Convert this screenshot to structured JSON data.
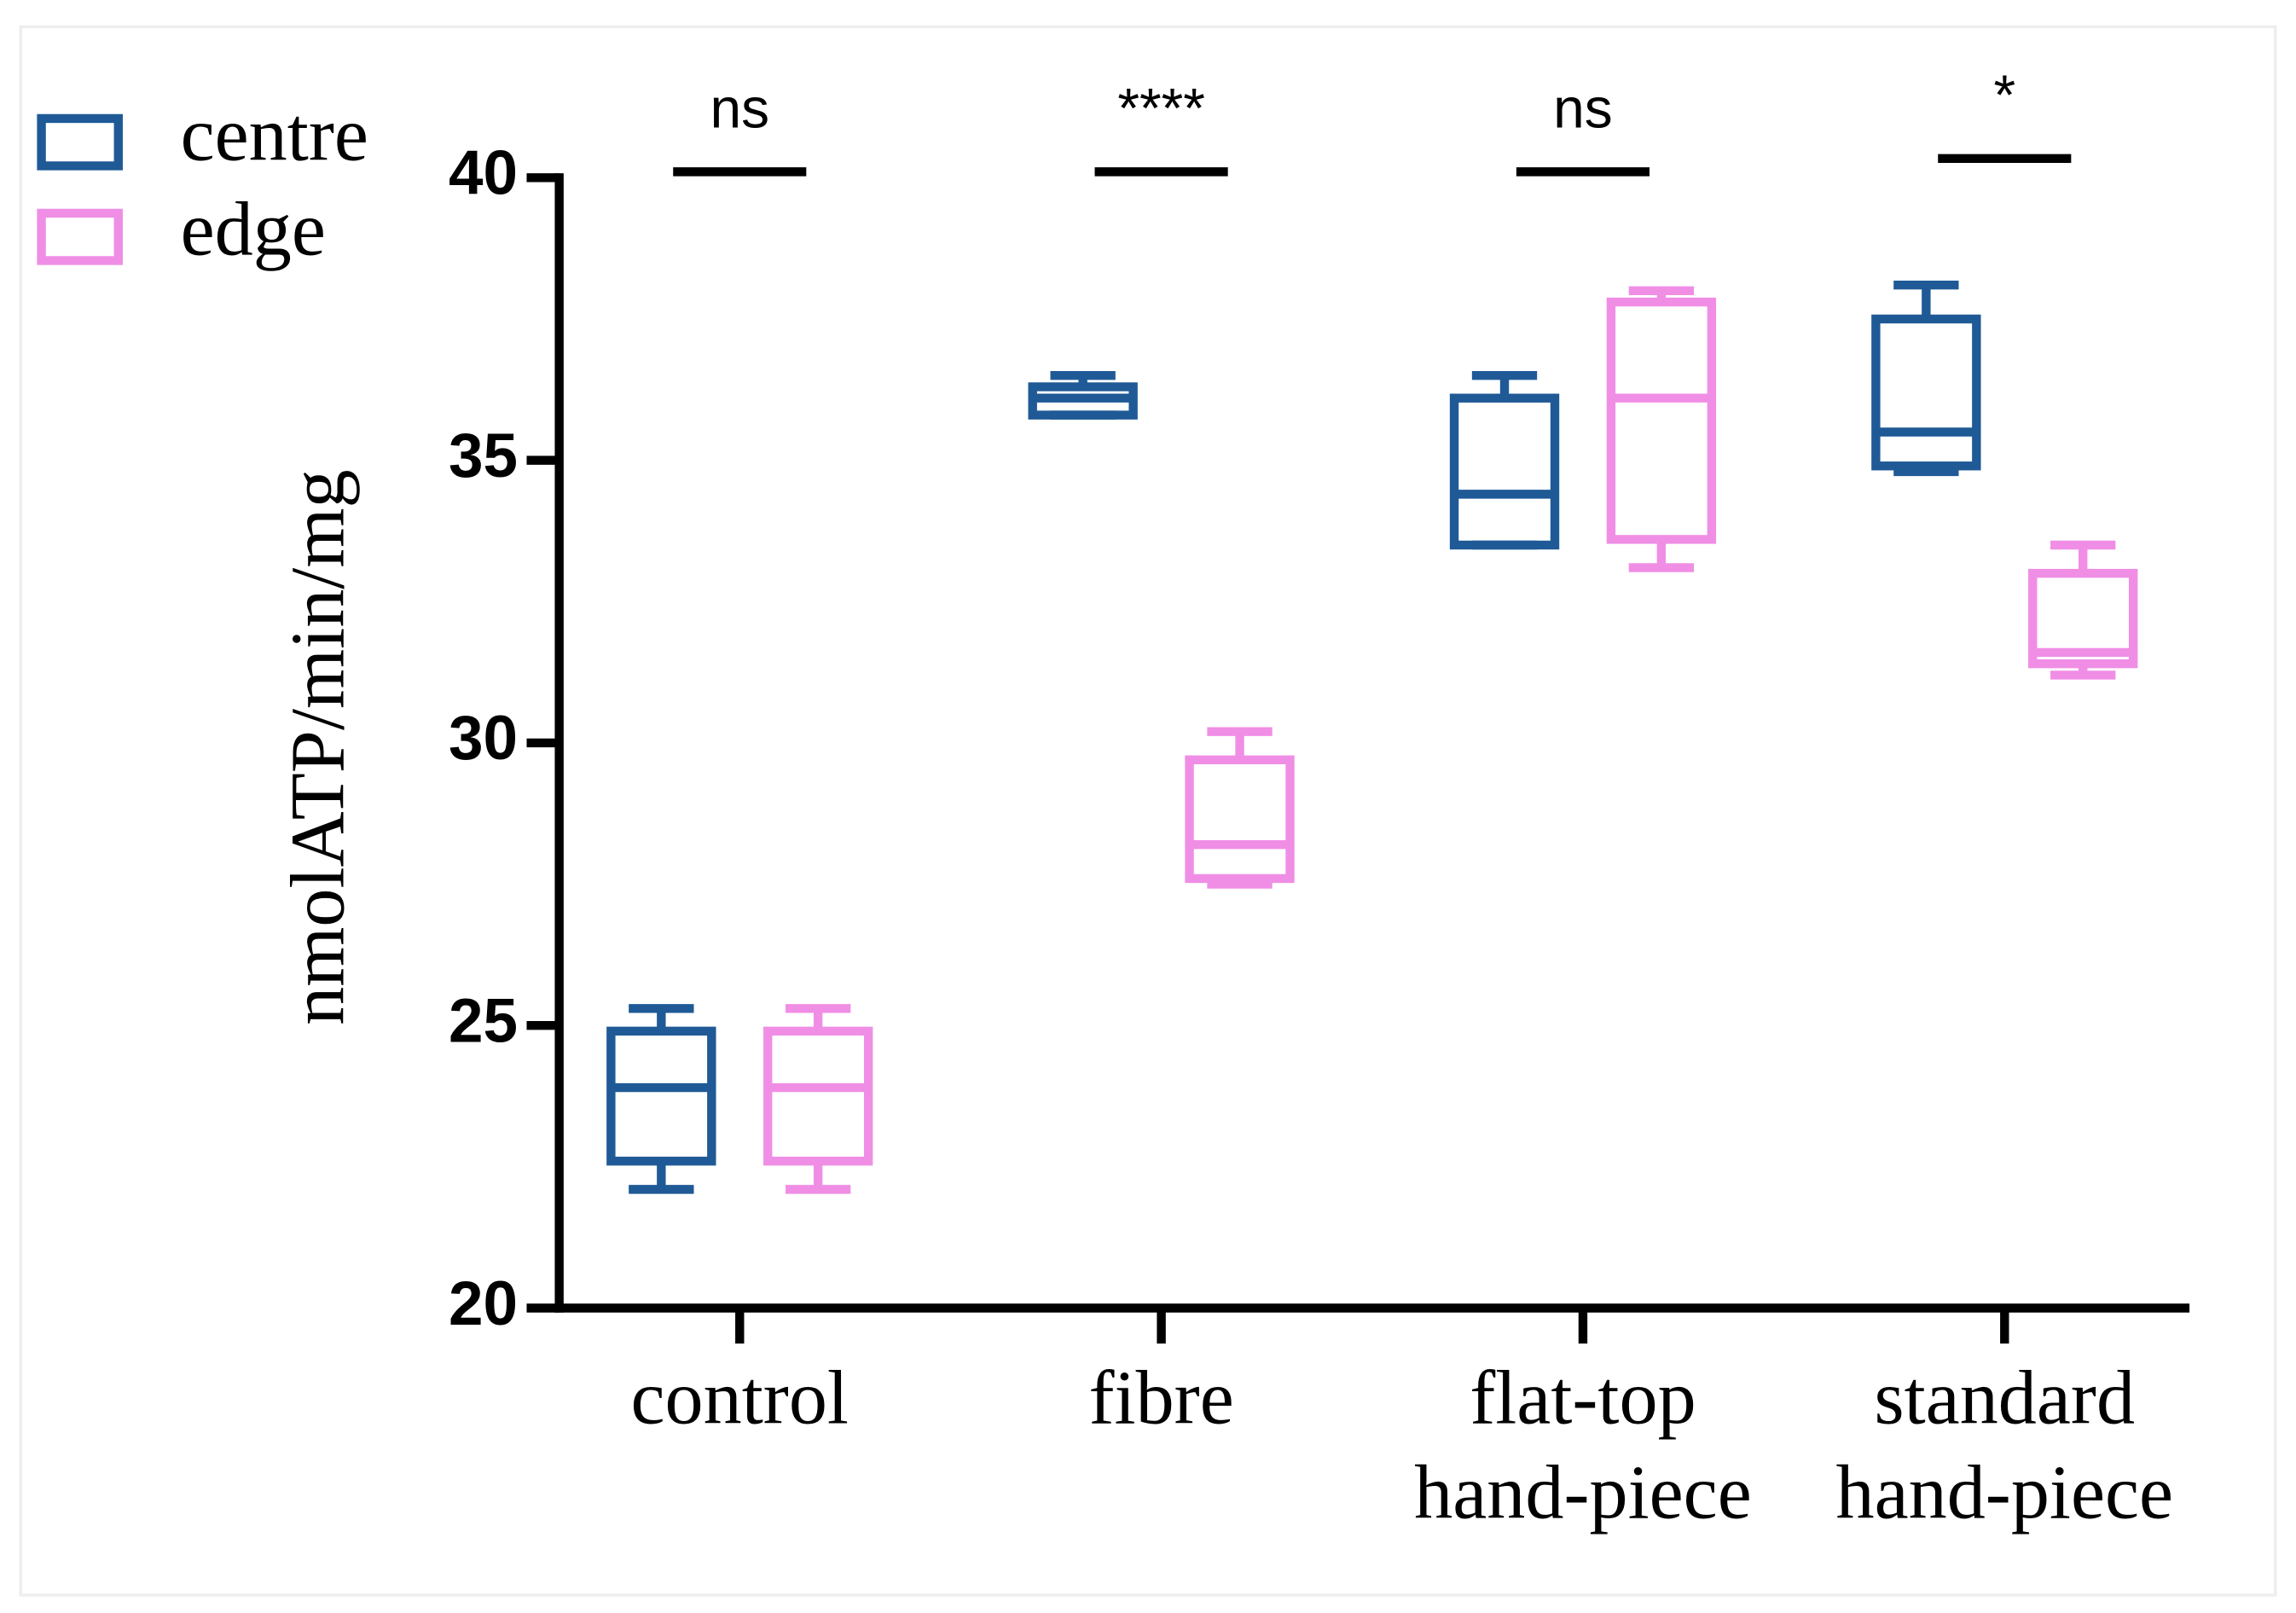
{
  "chart_data": {
    "type": "box",
    "y_label": "nmolATP/min/mg",
    "categories": [
      [
        "control"
      ],
      [
        "fibre"
      ],
      [
        "flat-top",
        "hand-piece"
      ],
      [
        "standard",
        "hand-piece"
      ]
    ],
    "series": [
      {
        "name": "centre",
        "color": "#1f5a96",
        "values": [
          {
            "min": 22.1,
            "q1": 22.6,
            "median": 23.9,
            "q3": 24.9,
            "max": 25.3
          },
          {
            "min": 35.8,
            "q1": 35.8,
            "median": 36.1,
            "q3": 36.3,
            "max": 36.5
          },
          {
            "min": 33.5,
            "q1": 33.5,
            "median": 34.4,
            "q3": 36.1,
            "max": 36.5
          },
          {
            "min": 34.8,
            "q1": 34.9,
            "median": 35.5,
            "q3": 37.5,
            "max": 38.1
          }
        ]
      },
      {
        "name": "edge",
        "color": "#f08ee6",
        "values": [
          {
            "min": 22.1,
            "q1": 22.6,
            "median": 23.9,
            "q3": 24.9,
            "max": 25.3
          },
          {
            "min": 27.5,
            "q1": 27.6,
            "median": 28.2,
            "q3": 29.7,
            "max": 30.2
          },
          {
            "min": 33.1,
            "q1": 33.6,
            "median": 36.1,
            "q3": 37.8,
            "max": 38.0
          },
          {
            "min": 31.2,
            "q1": 31.4,
            "median": 31.6,
            "q3": 33.0,
            "max": 33.5
          }
        ]
      }
    ],
    "significance": [
      "ns",
      "****",
      "ns",
      "*"
    ],
    "ylim": [
      20,
      40
    ],
    "yticks": [
      20,
      25,
      30,
      35,
      40
    ],
    "legend": "top-left"
  }
}
